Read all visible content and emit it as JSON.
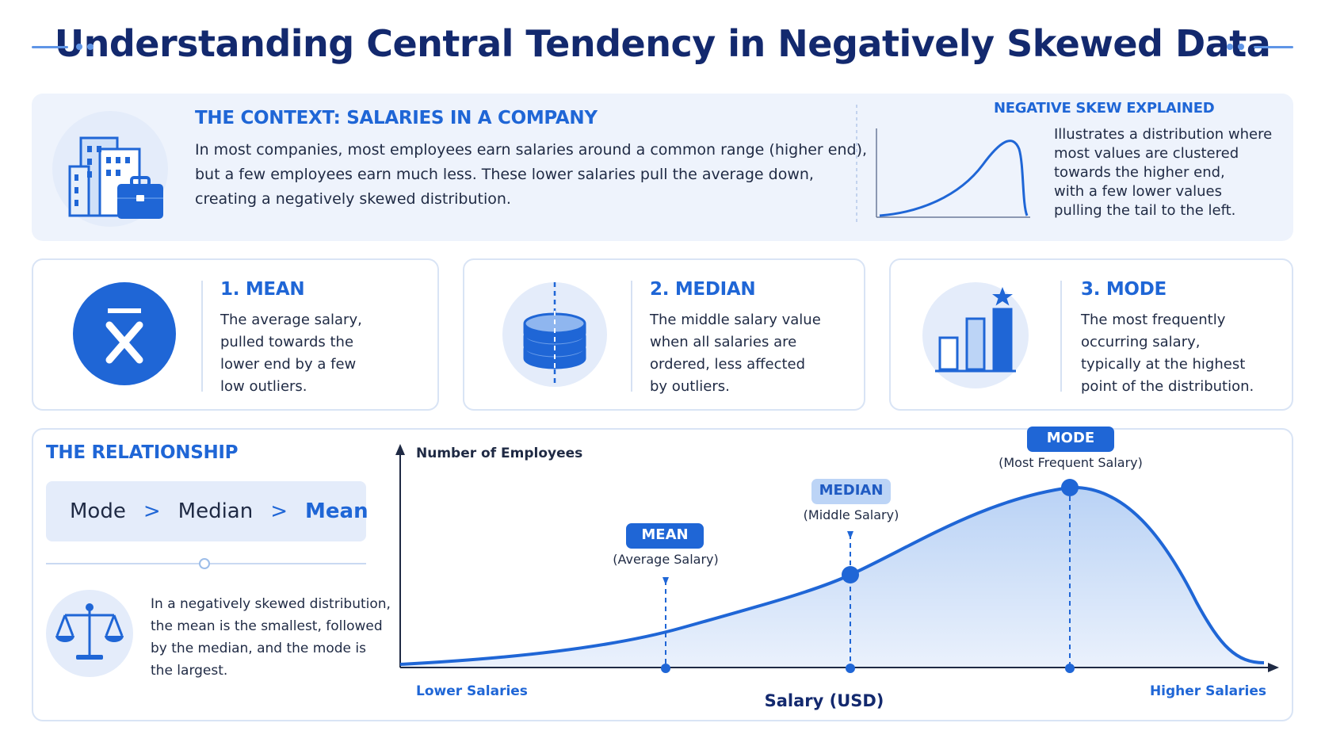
{
  "title": "Understanding Central Tendency in Negatively Skewed Data",
  "colors": {
    "primary": "#1f66d6",
    "navy": "#13296e",
    "panel": "#eef3fc",
    "light": "#bcd4f6"
  },
  "context": {
    "heading": "THE CONTEXT: SALARIES IN A COMPANY",
    "lines": [
      "In most companies, most employees earn salaries around a common range (higher end),",
      "but a few employees earn much less. These lower salaries pull the average down,",
      "creating a negatively skewed distribution."
    ],
    "icon": "building-briefcase-icon"
  },
  "skew": {
    "heading": "NEGATIVE SKEW EXPLAINED",
    "lines": [
      "Illustrates a distribution where",
      "most values are clustered",
      "towards the higher end,",
      "with a few lower values",
      "pulling the tail to the left."
    ]
  },
  "cards": [
    {
      "title": "1. MEAN",
      "icon": "x-bar-icon",
      "lines": [
        "The average salary,",
        "pulled towards the",
        "lower end by a few",
        "low outliers."
      ]
    },
    {
      "title": "2. MEDIAN",
      "icon": "coin-stack-icon",
      "lines": [
        "The middle salary value",
        "when all salaries are",
        "ordered, less affected",
        "by outliers."
      ]
    },
    {
      "title": "3. MODE",
      "icon": "bar-star-icon",
      "lines": [
        "The most frequently",
        "occurring salary,",
        "typically at the highest",
        "point of the distribution."
      ]
    }
  ],
  "relationship": {
    "heading": "THE RELATIONSHIP",
    "order": [
      "Mode",
      ">",
      "Median",
      ">",
      "Mean"
    ],
    "icon": "balance-scale-icon",
    "lines": [
      "In a negatively skewed distribution,",
      "the mean is the smallest, followed",
      "by the median, and the mode is",
      "the largest."
    ]
  },
  "chart": {
    "y_label": "Number of Employees",
    "x_label": "Salary (USD)",
    "x_low": "Lower Salaries",
    "x_high": "Higher Salaries",
    "markers": [
      {
        "tag": "MEAN",
        "sub": "(Average Salary)"
      },
      {
        "tag": "MEDIAN",
        "sub": "(Middle Salary)"
      },
      {
        "tag": "MODE",
        "sub": "(Most Frequent Salary)"
      }
    ]
  }
}
